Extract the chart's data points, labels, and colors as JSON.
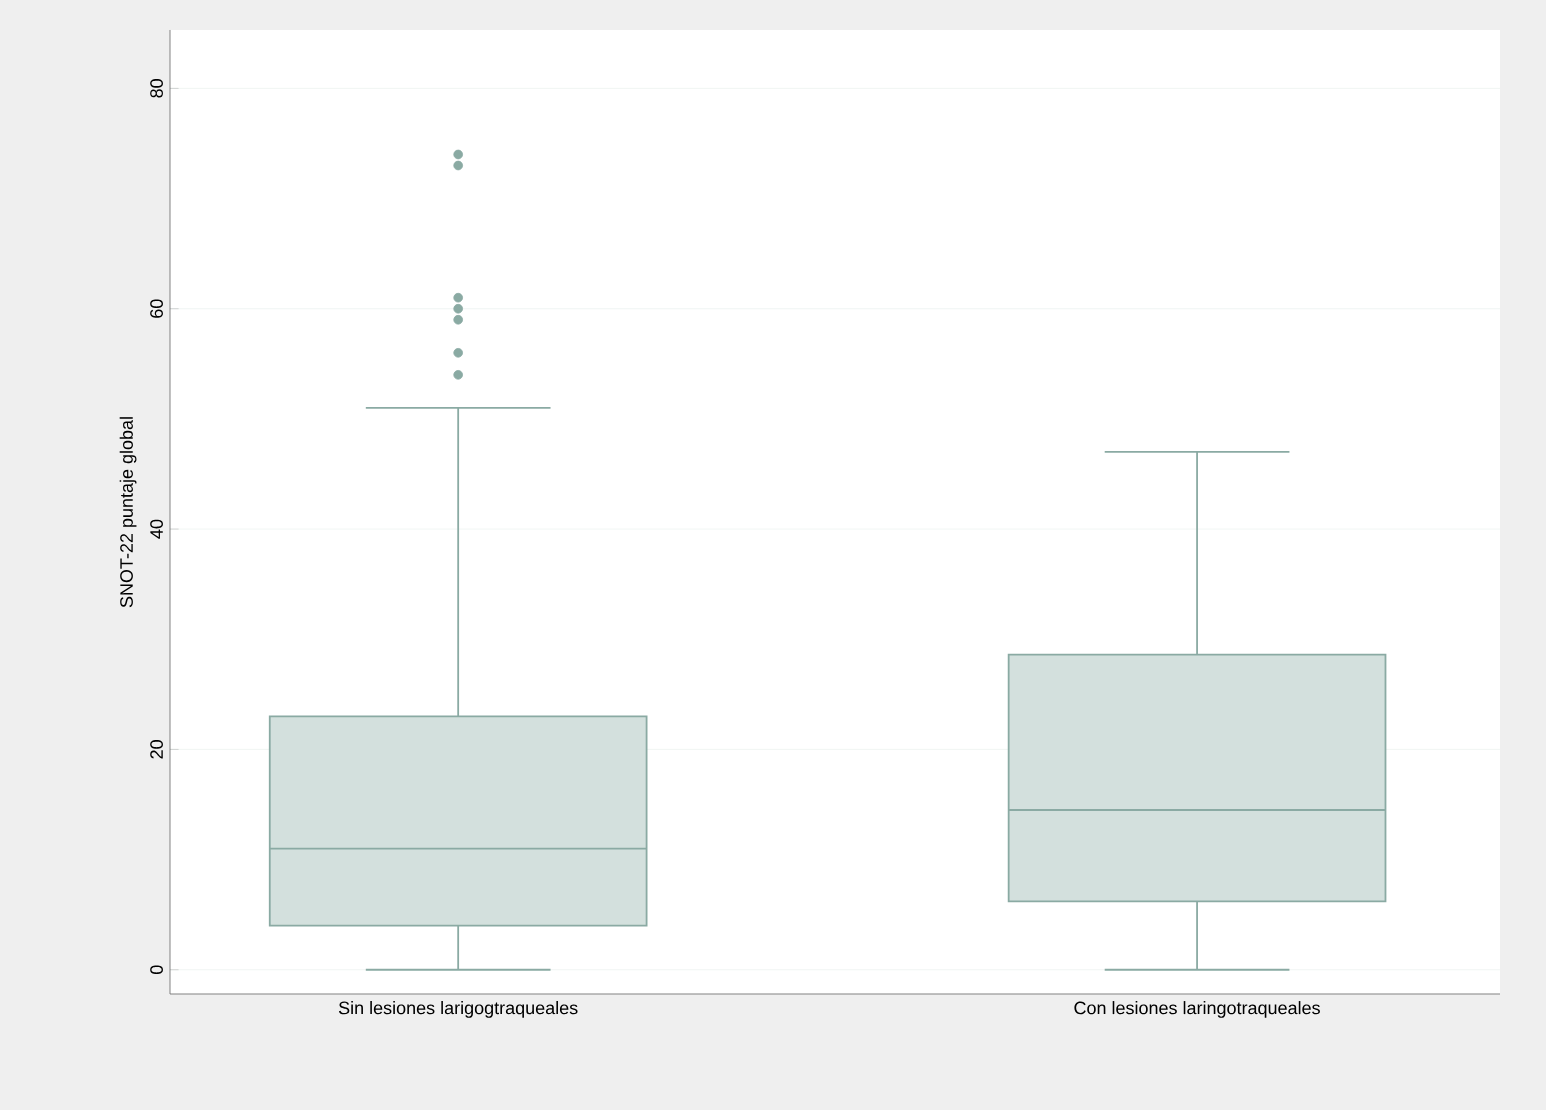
{
  "chart_data": {
    "type": "box",
    "ylabel": "SNOT-22 puntaje global",
    "categories": [
      "Sin lesiones larigogtraqueales",
      "Con lesiones laringotraqueales"
    ],
    "color": "#d3e0dd",
    "ylim": [
      -2.2,
      85.3
    ],
    "yticks": [
      0,
      20,
      40,
      60,
      80
    ],
    "grid": "y",
    "boxes": [
      {
        "low": 0,
        "q1": 4,
        "median": 11,
        "q3": 23,
        "high": 51,
        "outliers": [
          54,
          56,
          59,
          60,
          61,
          73,
          74
        ]
      },
      {
        "low": 0,
        "q1": 6.2,
        "median": 14.5,
        "q3": 28.6,
        "high": 47
      }
    ]
  }
}
